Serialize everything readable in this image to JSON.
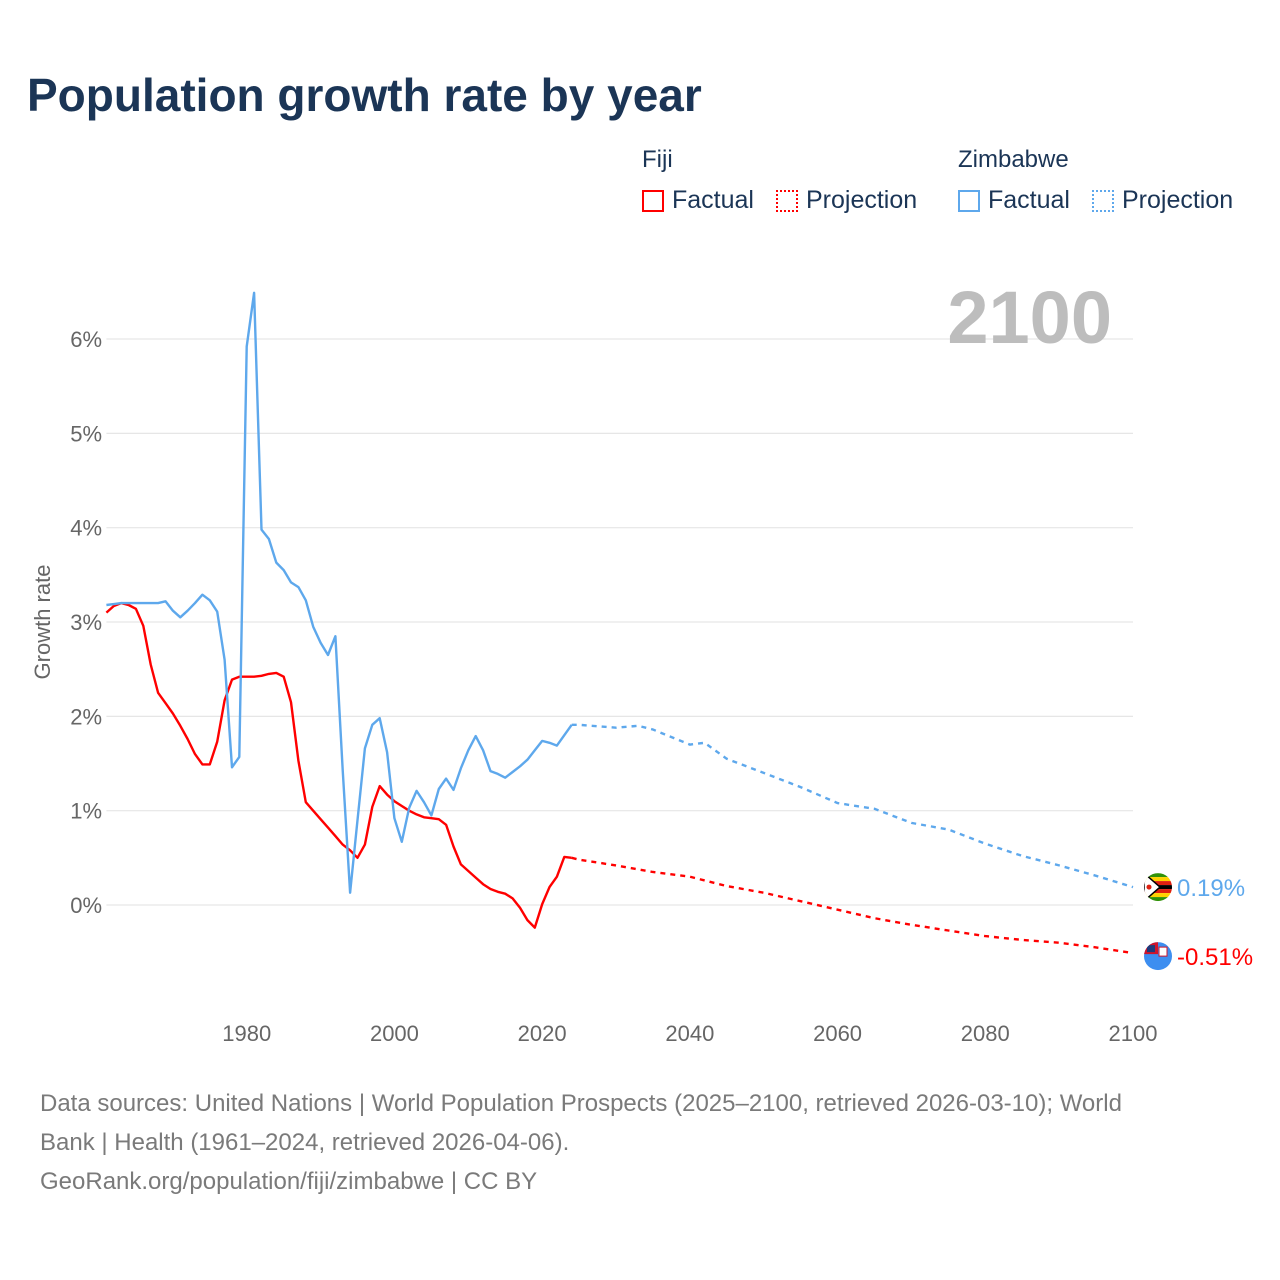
{
  "title": "Population growth rate by year",
  "legend": {
    "groups": [
      {
        "name": "Fiji",
        "factual": "Factual",
        "projection": "Projection",
        "color": "#ff0000"
      },
      {
        "name": "Zimbabwe",
        "factual": "Factual",
        "projection": "Projection",
        "color": "#5ea8ec"
      }
    ]
  },
  "footer": {
    "line1": "Data sources: United Nations | World Population Prospects (2025–2100, retrieved 2026-03-10); World",
    "line2": "Bank | Health (1961–2024, retrieved 2026-04-06).",
    "line3": "GeoRank.org/population/fiji/zimbabwe | CC BY"
  },
  "chart_data": {
    "type": "line",
    "title": "Population growth rate by year",
    "xlabel": "",
    "ylabel": "Growth rate",
    "current_year_label": "2100",
    "xlim": [
      1961,
      2100
    ],
    "ylim": [
      -1.0,
      6.6
    ],
    "x_ticks": [
      1980,
      2000,
      2020,
      2040,
      2060,
      2080,
      2100
    ],
    "y_ticks": [
      0,
      1,
      2,
      3,
      4,
      5,
      6
    ],
    "y_tick_labels": [
      "0%",
      "1%",
      "2%",
      "3%",
      "4%",
      "5%",
      "6%"
    ],
    "grid": true,
    "legend_position": "top-right",
    "series": [
      {
        "name": "Fiji",
        "color": "#ff0000",
        "end_label": "-0.51%",
        "flag": "fiji-flag",
        "factual": {
          "x": [
            1961,
            1962,
            1963,
            1964,
            1965,
            1966,
            1967,
            1968,
            1969,
            1970,
            1971,
            1972,
            1973,
            1974,
            1975,
            1976,
            1977,
            1978,
            1979,
            1980,
            1981,
            1982,
            1983,
            1984,
            1985,
            1986,
            1987,
            1988,
            1989,
            1990,
            1991,
            1992,
            1993,
            1994,
            1995,
            1996,
            1997,
            1998,
            1999,
            2000,
            2001,
            2002,
            2003,
            2004,
            2005,
            2006,
            2007,
            2008,
            2009,
            2010,
            2011,
            2012,
            2013,
            2014,
            2015,
            2016,
            2017,
            2018,
            2019,
            2020,
            2021,
            2022,
            2023,
            2024
          ],
          "y": [
            3.1,
            3.17,
            3.2,
            3.18,
            3.14,
            2.96,
            2.55,
            2.25,
            2.14,
            2.03,
            1.9,
            1.76,
            1.6,
            1.49,
            1.49,
            1.73,
            2.17,
            2.39,
            2.42,
            2.42,
            2.42,
            2.43,
            2.45,
            2.46,
            2.42,
            2.15,
            1.53,
            1.09,
            1.0,
            0.91,
            0.82,
            0.73,
            0.64,
            0.58,
            0.5,
            0.64,
            1.04,
            1.26,
            1.17,
            1.1,
            1.05,
            1.0,
            0.96,
            0.93,
            0.92,
            0.91,
            0.85,
            0.62,
            0.43,
            0.36,
            0.29,
            0.22,
            0.17,
            0.14,
            0.12,
            0.07,
            -0.03,
            -0.16,
            -0.24,
            0.01,
            0.19,
            0.3,
            0.51,
            0.5
          ]
        },
        "projection": {
          "x": [
            2024,
            2025,
            2030,
            2035,
            2040,
            2045,
            2050,
            2055,
            2060,
            2065,
            2070,
            2075,
            2080,
            2085,
            2090,
            2095,
            2100
          ],
          "y": [
            0.5,
            0.48,
            0.42,
            0.35,
            0.3,
            0.2,
            0.13,
            0.04,
            -0.05,
            -0.14,
            -0.21,
            -0.27,
            -0.33,
            -0.37,
            -0.4,
            -0.45,
            -0.51
          ]
        }
      },
      {
        "name": "Zimbabwe",
        "color": "#5ea8ec",
        "end_label": "0.19%",
        "flag": "zimbabwe-flag",
        "factual": {
          "x": [
            1961,
            1962,
            1963,
            1964,
            1965,
            1966,
            1967,
            1968,
            1969,
            1970,
            1971,
            1972,
            1973,
            1974,
            1975,
            1976,
            1977,
            1978,
            1979,
            1980,
            1981,
            1982,
            1983,
            1984,
            1985,
            1986,
            1987,
            1988,
            1989,
            1990,
            1991,
            1992,
            1993,
            1994,
            1995,
            1996,
            1997,
            1998,
            1999,
            2000,
            2001,
            2002,
            2003,
            2004,
            2005,
            2006,
            2007,
            2008,
            2009,
            2010,
            2011,
            2012,
            2013,
            2014,
            2015,
            2016,
            2017,
            2018,
            2019,
            2020,
            2021,
            2022,
            2023,
            2024
          ],
          "y": [
            3.18,
            3.19,
            3.2,
            3.2,
            3.2,
            3.2,
            3.2,
            3.2,
            3.22,
            3.12,
            3.05,
            3.12,
            3.2,
            3.29,
            3.23,
            3.11,
            2.6,
            1.46,
            1.57,
            5.92,
            6.49,
            3.98,
            3.88,
            3.63,
            3.55,
            3.42,
            3.37,
            3.23,
            2.95,
            2.78,
            2.65,
            2.85,
            1.43,
            0.13,
            0.9,
            1.66,
            1.91,
            1.98,
            1.62,
            0.92,
            0.67,
            1.03,
            1.21,
            1.09,
            0.95,
            1.23,
            1.34,
            1.22,
            1.45,
            1.64,
            1.79,
            1.64,
            1.42,
            1.39,
            1.35,
            1.41,
            1.47,
            1.54,
            1.64,
            1.74,
            1.72,
            1.69,
            1.8,
            1.91
          ]
        },
        "projection": {
          "x": [
            2024,
            2025,
            2030,
            2033,
            2035,
            2040,
            2042,
            2045,
            2050,
            2055,
            2060,
            2065,
            2070,
            2075,
            2080,
            2085,
            2090,
            2095,
            2100
          ],
          "y": [
            1.91,
            1.91,
            1.88,
            1.9,
            1.86,
            1.7,
            1.72,
            1.55,
            1.4,
            1.25,
            1.08,
            1.02,
            0.87,
            0.8,
            0.65,
            0.52,
            0.42,
            0.31,
            0.19
          ]
        }
      }
    ]
  }
}
